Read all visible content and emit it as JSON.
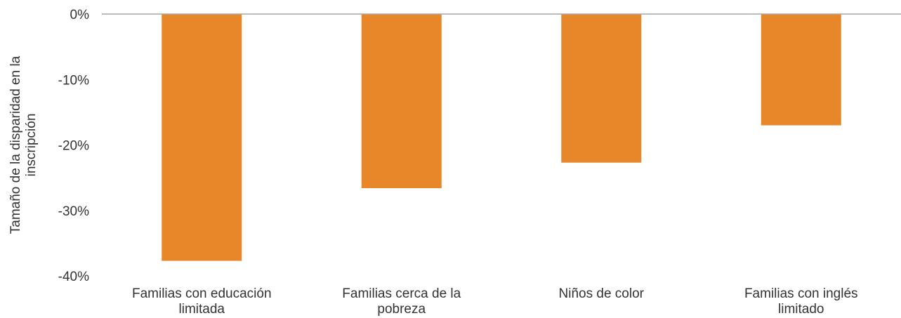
{
  "chart_data": {
    "type": "bar",
    "categories": [
      [
        "Familias con educación",
        "limitada"
      ],
      [
        "Familias cerca de la",
        "pobreza"
      ],
      [
        "Niños de color"
      ],
      [
        "Familias con inglés",
        "limitado"
      ]
    ],
    "values": [
      -37.7,
      -26.6,
      -22.7,
      -17.0
    ],
    "ylabel": [
      "Tamaño de la disparidad en la",
      "inscripción"
    ],
    "ylim": [
      -40,
      0
    ],
    "yticks": [
      0,
      -10,
      -20,
      -30,
      -40
    ],
    "ytick_labels": [
      "0%",
      "-10%",
      "-20%",
      "-30%",
      "-40%"
    ],
    "bar_color": "#E8862A",
    "axis_color": "#A6A6A6",
    "grid": false,
    "legend": "none"
  }
}
